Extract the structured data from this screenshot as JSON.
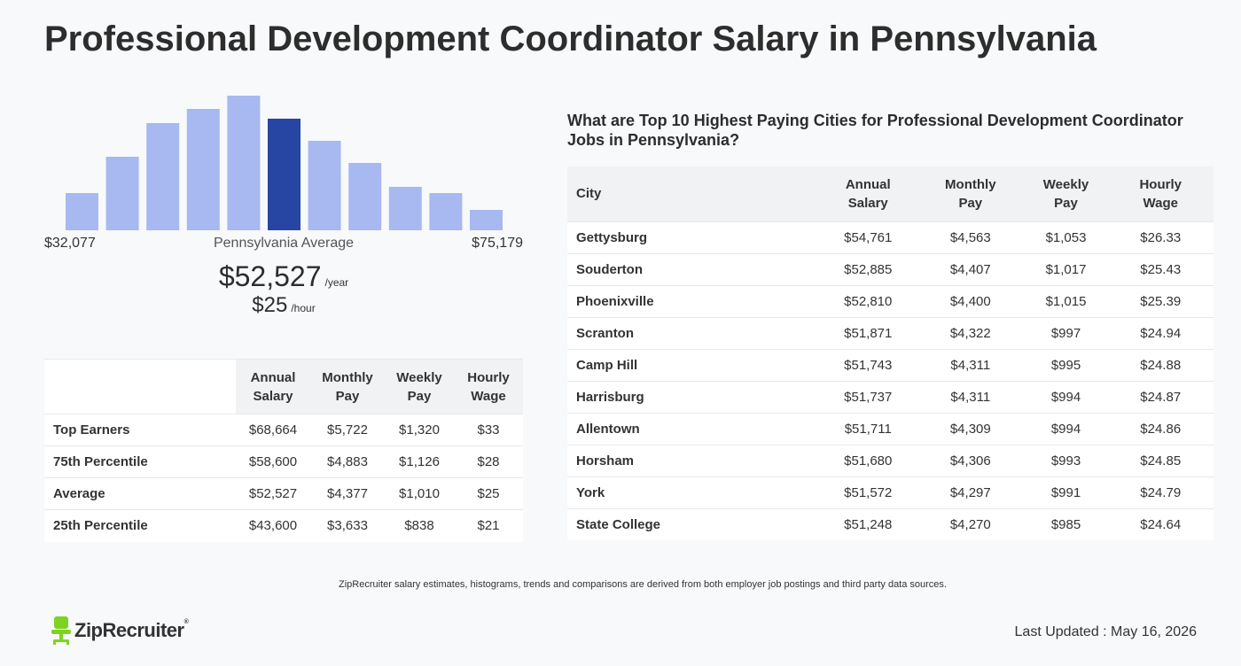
{
  "page": {
    "title": "Professional Development Coordinator Salary in Pennsylvania"
  },
  "histogram": {
    "range_low": "$32,077",
    "range_high": "$75,179",
    "average_label": "Pennsylvania Average",
    "average_annual": "$52,527",
    "annual_unit": "/year",
    "average_hourly": "$25",
    "hourly_unit": "/hour",
    "bar_color": "#a8b8f0",
    "highlight_color": "#2746a3",
    "highlight_index": 5
  },
  "chart_data": {
    "type": "bar",
    "categories": [
      "1",
      "2",
      "3",
      "4",
      "5",
      "6",
      "7",
      "8",
      "9",
      "10",
      "11"
    ],
    "values": [
      42,
      83,
      121,
      137,
      152,
      126,
      101,
      76,
      49,
      42,
      23
    ],
    "ylim": [
      0,
      152
    ]
  },
  "percentile_table": {
    "headers": [
      "Annual Salary",
      "Monthly Pay",
      "Weekly Pay",
      "Hourly Wage"
    ],
    "rows": [
      {
        "label": "Top Earners",
        "annual": "$68,664",
        "monthly": "$5,722",
        "weekly": "$1,320",
        "hourly": "$33"
      },
      {
        "label": "75th Percentile",
        "annual": "$58,600",
        "monthly": "$4,883",
        "weekly": "$1,126",
        "hourly": "$28"
      },
      {
        "label": "Average",
        "annual": "$52,527",
        "monthly": "$4,377",
        "weekly": "$1,010",
        "hourly": "$25"
      },
      {
        "label": "25th Percentile",
        "annual": "$43,600",
        "monthly": "$3,633",
        "weekly": "$838",
        "hourly": "$21"
      }
    ]
  },
  "cities": {
    "heading": "What are Top 10 Highest Paying Cities for Professional Development Coordinator Jobs in Pennsylvania?",
    "headers": [
      "City",
      "Annual Salary",
      "Monthly Pay",
      "Weekly Pay",
      "Hourly Wage"
    ],
    "rows": [
      {
        "city": "Gettysburg",
        "annual": "$54,761",
        "monthly": "$4,563",
        "weekly": "$1,053",
        "hourly": "$26.33"
      },
      {
        "city": "Souderton",
        "annual": "$52,885",
        "monthly": "$4,407",
        "weekly": "$1,017",
        "hourly": "$25.43"
      },
      {
        "city": "Phoenixville",
        "annual": "$52,810",
        "monthly": "$4,400",
        "weekly": "$1,015",
        "hourly": "$25.39"
      },
      {
        "city": "Scranton",
        "annual": "$51,871",
        "monthly": "$4,322",
        "weekly": "$997",
        "hourly": "$24.94"
      },
      {
        "city": "Camp Hill",
        "annual": "$51,743",
        "monthly": "$4,311",
        "weekly": "$995",
        "hourly": "$24.88"
      },
      {
        "city": "Harrisburg",
        "annual": "$51,737",
        "monthly": "$4,311",
        "weekly": "$994",
        "hourly": "$24.87"
      },
      {
        "city": "Allentown",
        "annual": "$51,711",
        "monthly": "$4,309",
        "weekly": "$994",
        "hourly": "$24.86"
      },
      {
        "city": "Horsham",
        "annual": "$51,680",
        "monthly": "$4,306",
        "weekly": "$993",
        "hourly": "$24.85"
      },
      {
        "city": "York",
        "annual": "$51,572",
        "monthly": "$4,297",
        "weekly": "$991",
        "hourly": "$24.79"
      },
      {
        "city": "State College",
        "annual": "$51,248",
        "monthly": "$4,270",
        "weekly": "$985",
        "hourly": "$24.64"
      }
    ]
  },
  "footer": {
    "disclaimer": "ZipRecruiter salary estimates, histograms, trends and comparisons are derived from both employer job postings and third party data sources.",
    "brand": "ZipRecruiter",
    "reg_mark": "®",
    "logo_icon": "chair-icon",
    "logo_color": "#7ed321",
    "last_updated": "Last Updated : May 16, 2026"
  }
}
